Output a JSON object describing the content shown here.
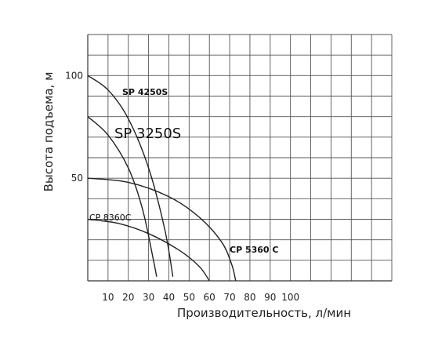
{
  "chart_data": {
    "type": "line",
    "xlabel": "Производительность, л/мин",
    "ylabel": "Высота подъема, м",
    "x_ticks": [
      10,
      20,
      30,
      40,
      50,
      60,
      70,
      80,
      90,
      100
    ],
    "y_ticks": [
      50,
      100
    ],
    "xlim": [
      0,
      150
    ],
    "ylim": [
      0,
      120
    ],
    "grid": true,
    "series": [
      {
        "name": "SP 4250S",
        "x": [
          0,
          10,
          20,
          30,
          38,
          42
        ],
        "y": [
          100,
          93,
          79,
          55,
          25,
          2
        ]
      },
      {
        "name": "SP 3250S",
        "x": [
          0,
          10,
          20,
          27,
          32,
          34
        ],
        "y": [
          80,
          71,
          55,
          35,
          12,
          2
        ]
      },
      {
        "name": "CP 5360 C",
        "x": [
          0,
          20,
          40,
          55,
          66,
          71,
          73
        ],
        "y": [
          50,
          48,
          41,
          31,
          19,
          8,
          0
        ]
      },
      {
        "name": "CP 8360C",
        "x": [
          0,
          15,
          30,
          45,
          55,
          60
        ],
        "y": [
          30,
          28,
          23,
          15,
          7,
          0
        ]
      }
    ]
  }
}
